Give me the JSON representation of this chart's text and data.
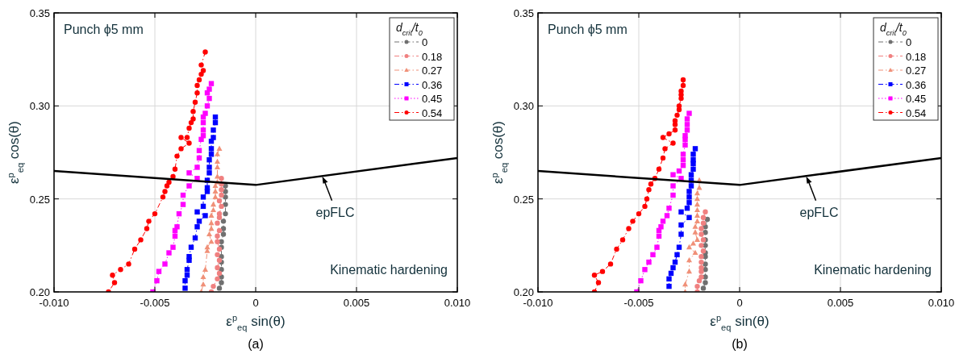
{
  "chart_data": [
    {
      "type": "line",
      "subtitle": "(a)",
      "xlabel": "ε$^{p}$$_{eq}$ sin(θ)",
      "ylabel": "ε$^{p}$$_{eq}$ cos(θ)",
      "legend_title": "d$_{crit}$/t$_{0}$",
      "legend": "top right",
      "grid": true,
      "xlim": [
        -0.01,
        0.01
      ],
      "ylim": [
        0.2,
        0.35
      ],
      "xticks": [
        {
          "value": -0.01,
          "label": "-0.010"
        },
        {
          "value": -0.005,
          "label": "-0.005"
        },
        0,
        {
          "value": 0.005,
          "label": "0.005"
        },
        {
          "value": 0.01,
          "label": "0.010"
        }
      ],
      "yticks": [
        {
          "value": 0.2,
          "label": "0.20"
        },
        {
          "value": 0.25,
          "label": "0.25"
        },
        {
          "value": 0.3,
          "label": "0.30"
        },
        {
          "value": 0.35,
          "label": "0.35"
        }
      ],
      "annotations": [
        "Punch ϕ5 mm",
        "Kinematic hardening",
        {
          "text": "epFLC",
          "x": 0.0033,
          "y": 0.263
        }
      ],
      "series": [
        {
          "name": "0",
          "color": "#707070",
          "marker": "circle",
          "line_style": "dashed",
          "x": [
            -0.0015,
            -0.0015,
            -0.0015,
            -0.0015,
            -0.0015,
            -0.0016,
            -0.0016,
            -0.0016,
            -0.0017,
            -0.0017,
            -0.0017,
            -0.0017,
            -0.0017,
            -0.0017,
            -0.0017,
            -0.0018
          ],
          "values": [
            0.257,
            0.254,
            0.251,
            0.247,
            0.242,
            0.238,
            0.234,
            0.231,
            0.227,
            0.224,
            0.219,
            0.216,
            0.212,
            0.208,
            0.205,
            0.202
          ]
        },
        {
          "name": "0.18",
          "color": "#f08080",
          "marker": "circle",
          "line_style": "dashed",
          "x": [
            -0.0017,
            -0.0017,
            -0.0017,
            -0.0017,
            -0.0018,
            -0.0017,
            -0.0018,
            -0.0018,
            -0.0019,
            -0.0018,
            -0.0019,
            -0.0019,
            -0.0018,
            -0.0019,
            -0.0018,
            -0.0019,
            -0.0018,
            -0.0019,
            -0.0021,
            -0.0022
          ],
          "values": [
            0.261,
            0.258,
            0.255,
            0.252,
            0.249,
            0.246,
            0.242,
            0.24,
            0.237,
            0.233,
            0.23,
            0.227,
            0.223,
            0.22,
            0.217,
            0.213,
            0.21,
            0.207,
            0.203,
            0.2
          ]
        },
        {
          "name": "0.27",
          "color": "#f09078",
          "marker": "triangle",
          "line_style": "dashed",
          "x": [
            -0.0018,
            -0.0019,
            -0.0019,
            -0.0019,
            -0.0019,
            -0.0019,
            -0.002,
            -0.002,
            -0.002,
            -0.0021,
            -0.0021,
            -0.0022,
            -0.0022,
            -0.0022,
            -0.0023,
            -0.0022,
            -0.0024,
            -0.0024,
            -0.0025,
            -0.0026,
            -0.0026,
            -0.0027
          ],
          "values": [
            0.277,
            0.274,
            0.27,
            0.267,
            0.262,
            0.259,
            0.257,
            0.254,
            0.251,
            0.247,
            0.244,
            0.241,
            0.237,
            0.234,
            0.231,
            0.227,
            0.224,
            0.222,
            0.212,
            0.208,
            0.204,
            0.2
          ]
        },
        {
          "name": "0.36",
          "color": "#0000ff",
          "marker": "square",
          "line_style": "dashed",
          "x": [
            -0.002,
            -0.002,
            -0.0021,
            -0.0021,
            -0.0022,
            -0.0022,
            -0.0022,
            -0.0023,
            -0.0023,
            -0.0023,
            -0.0024,
            -0.0024,
            -0.0024,
            -0.0026,
            -0.0026,
            -0.0029,
            -0.0025,
            -0.0028,
            -0.0029,
            -0.003,
            -0.0032,
            -0.0033,
            -0.0033,
            -0.0034,
            -0.0034,
            -0.0035,
            -0.0035
          ],
          "values": [
            0.294,
            0.291,
            0.287,
            0.283,
            0.281,
            0.277,
            0.274,
            0.271,
            0.267,
            0.264,
            0.26,
            0.256,
            0.254,
            0.251,
            0.246,
            0.243,
            0.241,
            0.238,
            0.235,
            0.229,
            0.224,
            0.219,
            0.217,
            0.212,
            0.209,
            0.206,
            0.202
          ]
        },
        {
          "name": "0.45",
          "color": "#ff00ff",
          "marker": "square",
          "line_style": "dotted",
          "x": [
            -0.0022,
            -0.0023,
            -0.0024,
            -0.0023,
            -0.0024,
            -0.0025,
            -0.0026,
            -0.0026,
            -0.0026,
            -0.0026,
            -0.0027,
            -0.0028,
            -0.0028,
            -0.0029,
            -0.0033,
            -0.0029,
            -0.0033,
            -0.0036,
            -0.0036,
            -0.0038,
            -0.0039,
            -0.004,
            -0.004,
            -0.0041,
            -0.0043,
            -0.0045,
            -0.0048,
            -0.0049,
            -0.0051
          ],
          "values": [
            0.312,
            0.309,
            0.307,
            0.304,
            0.3,
            0.296,
            0.294,
            0.291,
            0.287,
            0.284,
            0.282,
            0.276,
            0.272,
            0.267,
            0.264,
            0.261,
            0.257,
            0.252,
            0.247,
            0.242,
            0.235,
            0.233,
            0.23,
            0.224,
            0.221,
            0.215,
            0.211,
            0.206,
            0.2
          ]
        },
        {
          "name": "0.54",
          "color": "#ff0000",
          "marker": "circle",
          "line_style": "dashed",
          "x": [
            -0.0025,
            -0.0027,
            -0.0026,
            -0.0027,
            -0.0028,
            -0.0029,
            -0.0029,
            -0.003,
            -0.0031,
            -0.0031,
            -0.0032,
            -0.0033,
            -0.0034,
            -0.0037,
            -0.0033,
            -0.0037,
            -0.0039,
            -0.004,
            -0.0041,
            -0.0043,
            -0.0044,
            -0.0045,
            -0.0046,
            -0.005,
            -0.0053,
            -0.0054,
            -0.0057,
            -0.006,
            -0.0063,
            -0.0067,
            -0.0071,
            -0.007,
            -0.0073
          ],
          "values": [
            0.329,
            0.322,
            0.319,
            0.317,
            0.314,
            0.311,
            0.307,
            0.302,
            0.297,
            0.293,
            0.291,
            0.288,
            0.283,
            0.283,
            0.28,
            0.277,
            0.273,
            0.266,
            0.262,
            0.259,
            0.257,
            0.254,
            0.251,
            0.242,
            0.238,
            0.234,
            0.228,
            0.223,
            0.215,
            0.212,
            0.209,
            0.205,
            0.2
          ]
        },
        {
          "type": "line",
          "color": "#000000",
          "marker": "none",
          "line_style": "solid",
          "x": [
            -0.01,
            0,
            0.01
          ],
          "values": [
            0.265,
            0.2575,
            0.272
          ]
        }
      ]
    },
    {
      "type": "line",
      "subtitle": "(b)",
      "xlabel": "ε$^{p}$$_{eq}$ sin(θ)",
      "ylabel": "ε$^{p}$$_{eq}$ cos(θ)",
      "legend_title": "d$_{crit}$/t$_{0}$",
      "legend": "top right",
      "grid": true,
      "xlim": [
        -0.01,
        0.01
      ],
      "ylim": [
        0.2,
        0.35
      ],
      "xticks": [
        {
          "value": -0.01,
          "label": "-0.010"
        },
        {
          "value": -0.005,
          "label": "-0.005"
        },
        0,
        {
          "value": 0.005,
          "label": "0.005"
        },
        {
          "value": 0.01,
          "label": "0.010"
        }
      ],
      "yticks": [
        {
          "value": 0.2,
          "label": "0.20"
        },
        {
          "value": 0.25,
          "label": "0.25"
        },
        {
          "value": 0.3,
          "label": "0.30"
        },
        {
          "value": 0.35,
          "label": "0.35"
        }
      ],
      "annotations": [
        "Punch ϕ5 mm",
        "Kinematic hardening",
        {
          "text": "epFLC",
          "x": 0.0033,
          "y": 0.263
        }
      ],
      "series": [
        {
          "name": "0",
          "color": "#707070",
          "marker": "circle",
          "line_style": "dashed",
          "x": [
            -0.0016,
            -0.0017,
            -0.0017,
            -0.0017,
            -0.0017,
            -0.0017,
            -0.0017,
            -0.0017,
            -0.0017,
            -0.0017,
            -0.0017,
            -0.0018
          ],
          "values": [
            0.239,
            0.235,
            0.232,
            0.228,
            0.225,
            0.221,
            0.219,
            0.215,
            0.212,
            0.208,
            0.205,
            0.202
          ]
        },
        {
          "name": "0.18",
          "color": "#f08080",
          "marker": "circle",
          "line_style": "dashed",
          "x": [
            -0.0017,
            -0.0018,
            -0.0018,
            -0.0019,
            -0.0019,
            -0.0018,
            -0.0019,
            -0.0018,
            -0.0019,
            -0.0019,
            -0.0019,
            -0.0019,
            -0.0019,
            -0.002,
            -0.0021,
            -0.0021
          ],
          "values": [
            0.243,
            0.24,
            0.237,
            0.234,
            0.231,
            0.228,
            0.225,
            0.222,
            0.219,
            0.216,
            0.213,
            0.211,
            0.208,
            0.206,
            0.203,
            0.2
          ]
        },
        {
          "name": "0.27",
          "color": "#f09078",
          "marker": "triangle",
          "line_style": "dashed",
          "x": [
            -0.002,
            -0.002,
            -0.0021,
            -0.0021,
            -0.0021,
            -0.0021,
            -0.0021,
            -0.0021,
            -0.0022,
            -0.0022,
            -0.0021,
            -0.0023,
            -0.0025,
            -0.0022,
            -0.0025,
            -0.0025,
            -0.0027,
            -0.0027
          ],
          "values": [
            0.26,
            0.256,
            0.253,
            0.25,
            0.247,
            0.244,
            0.241,
            0.238,
            0.235,
            0.232,
            0.228,
            0.226,
            0.224,
            0.221,
            0.217,
            0.211,
            0.204,
            0.2
          ]
        },
        {
          "name": "0.36",
          "color": "#0000ff",
          "marker": "square",
          "line_style": "dashed",
          "x": [
            -0.0022,
            -0.0023,
            -0.0023,
            -0.0023,
            -0.0023,
            -0.0024,
            -0.0024,
            -0.0024,
            -0.0025,
            -0.0025,
            -0.0025,
            -0.0026,
            -0.0029,
            -0.0025,
            -0.0029,
            -0.0029,
            -0.003,
            -0.0031,
            -0.0032,
            -0.0033,
            -0.0034,
            -0.0035,
            -0.0035
          ],
          "values": [
            0.277,
            0.274,
            0.271,
            0.269,
            0.266,
            0.263,
            0.26,
            0.257,
            0.254,
            0.251,
            0.248,
            0.245,
            0.243,
            0.24,
            0.236,
            0.231,
            0.224,
            0.22,
            0.216,
            0.213,
            0.21,
            0.207,
            0.203
          ]
        },
        {
          "name": "0.45",
          "color": "#ff00ff",
          "marker": "square",
          "line_style": "dotted",
          "x": [
            -0.0025,
            -0.0026,
            -0.0026,
            -0.0026,
            -0.0027,
            -0.0027,
            -0.0027,
            -0.0028,
            -0.0028,
            -0.0028,
            -0.003,
            -0.0033,
            -0.0029,
            -0.0033,
            -0.0033,
            -0.0035,
            -0.0036,
            -0.0038,
            -0.0039,
            -0.004,
            -0.004,
            -0.0041,
            -0.0043,
            -0.0045,
            -0.0047,
            -0.0049,
            -0.0051
          ],
          "values": [
            0.296,
            0.293,
            0.29,
            0.287,
            0.284,
            0.282,
            0.279,
            0.274,
            0.271,
            0.268,
            0.265,
            0.263,
            0.261,
            0.257,
            0.252,
            0.245,
            0.241,
            0.238,
            0.235,
            0.233,
            0.23,
            0.224,
            0.22,
            0.216,
            0.212,
            0.206,
            0.2
          ]
        },
        {
          "name": "0.54",
          "color": "#ff0000",
          "marker": "circle",
          "line_style": "dashed",
          "x": [
            -0.0028,
            -0.0028,
            -0.0029,
            -0.0029,
            -0.0029,
            -0.003,
            -0.003,
            -0.0031,
            -0.0032,
            -0.0032,
            -0.0032,
            -0.0035,
            -0.0038,
            -0.0033,
            -0.0037,
            -0.0038,
            -0.004,
            -0.0042,
            -0.0044,
            -0.0045,
            -0.0046,
            -0.0047,
            -0.005,
            -0.0053,
            -0.0055,
            -0.0058,
            -0.0061,
            -0.0064,
            -0.0068,
            -0.0072,
            -0.007,
            -0.0072
          ],
          "values": [
            0.314,
            0.311,
            0.308,
            0.306,
            0.304,
            0.3,
            0.298,
            0.295,
            0.292,
            0.29,
            0.287,
            0.285,
            0.283,
            0.28,
            0.277,
            0.272,
            0.266,
            0.261,
            0.258,
            0.255,
            0.25,
            0.246,
            0.242,
            0.238,
            0.234,
            0.228,
            0.223,
            0.215,
            0.211,
            0.209,
            0.205,
            0.2
          ]
        },
        {
          "type": "line",
          "color": "#000000",
          "marker": "none",
          "line_style": "solid",
          "x": [
            -0.01,
            0,
            0.01
          ],
          "values": [
            0.265,
            0.2575,
            0.272
          ]
        }
      ]
    }
  ]
}
